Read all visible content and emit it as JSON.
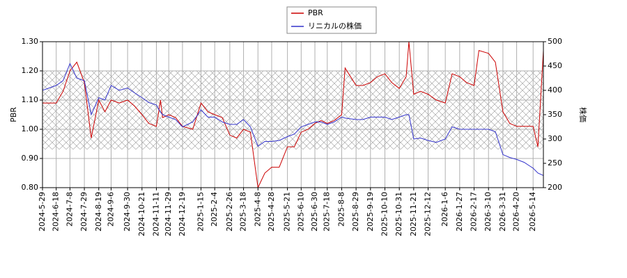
{
  "chart_data": {
    "type": "line",
    "x": [
      "2024-5-29",
      "2024-6-8",
      "2024-6-18",
      "2024-6-28",
      "2024-7-8",
      "2024-7-18",
      "2024-7-29",
      "2024-8-8",
      "2024-8-19",
      "2024-8-28",
      "2024-9-6",
      "2024-9-18",
      "2024-9-30",
      "2024-10-10",
      "2024-10-21",
      "2024-10-31",
      "2024-11-11",
      "2024-11-17",
      "2024-11-20",
      "2024-11-29",
      "2024-12-9",
      "2024-12-19",
      "2025-1-3",
      "2025-1-15",
      "2025-1-25",
      "2025-2-4",
      "2025-2-15",
      "2025-2-26",
      "2025-3-8",
      "2025-3-18",
      "2025-3-28",
      "2025-4-8",
      "2025-4-18",
      "2025-4-28",
      "2025-5-9",
      "2025-5-21",
      "2025-5-31",
      "2025-6-10",
      "2025-6-20",
      "2025-6-30",
      "2025-7-9",
      "2025-7-18",
      "2025-7-28",
      "2025-8-8",
      "2025-8-13",
      "2025-8-29",
      "2025-9-8",
      "2025-9-19",
      "2025-9-29",
      "2025-10-10",
      "2025-10-20",
      "2025-10-31",
      "2025-11-10",
      "2025-11-14",
      "2025-11-21",
      "2025-12-1",
      "2025-12-12",
      "2025-12-24",
      "2026-1-6",
      "2026-1-16",
      "2026-1-27",
      "2026-2-6",
      "2026-2-17",
      "2026-2-24",
      "2026-3-10",
      "2026-3-20",
      "2026-3-31",
      "2026-4-10",
      "2026-4-20",
      "2026-5-1",
      "2026-5-14",
      "2026-5-21",
      "2026-5-29"
    ],
    "series": [
      {
        "name": "PBR",
        "color": "#cc0000",
        "axis": "y",
        "values": [
          1.09,
          1.09,
          1.09,
          1.13,
          1.2,
          1.23,
          1.16,
          0.97,
          1.1,
          1.06,
          1.1,
          1.09,
          1.1,
          1.08,
          1.05,
          1.02,
          1.01,
          1.1,
          1.04,
          1.05,
          1.04,
          1.01,
          1.0,
          1.09,
          1.06,
          1.05,
          1.04,
          0.98,
          0.97,
          1.0,
          0.99,
          0.8,
          0.85,
          0.87,
          0.87,
          0.94,
          0.94,
          0.99,
          1.0,
          1.02,
          1.03,
          1.02,
          1.03,
          1.05,
          1.21,
          1.15,
          1.15,
          1.16,
          1.18,
          1.19,
          1.16,
          1.14,
          1.18,
          1.3,
          1.12,
          1.13,
          1.12,
          1.1,
          1.09,
          1.19,
          1.18,
          1.16,
          1.15,
          1.27,
          1.26,
          1.23,
          1.06,
          1.02,
          1.01,
          1.01,
          1.01,
          0.94,
          1.27
        ]
      },
      {
        "name": "リニカルの株価",
        "color": "#3333cc",
        "axis": "y2",
        "values": [
          400,
          405,
          410,
          420,
          455,
          425,
          420,
          350,
          385,
          380,
          410,
          400,
          405,
          395,
          385,
          375,
          370,
          355,
          350,
          345,
          340,
          325,
          335,
          360,
          345,
          345,
          335,
          330,
          330,
          340,
          325,
          285,
          295,
          295,
          297,
          305,
          310,
          325,
          330,
          335,
          335,
          330,
          335,
          345,
          343,
          340,
          340,
          345,
          345,
          345,
          340,
          345,
          350,
          350,
          300,
          302,
          297,
          293,
          300,
          325,
          320,
          320,
          320,
          320,
          320,
          315,
          268,
          262,
          258,
          252,
          240,
          230,
          225
        ]
      }
    ],
    "xticks": [
      "2024-5-29",
      "2024-6-18",
      "2024-7-8",
      "2024-7-29",
      "2024-8-19",
      "2024-9-6",
      "2024-9-30",
      "2024-10-21",
      "2024-11-11",
      "2024-11-29",
      "2024-12-19",
      "2025-1-15",
      "2025-2-4",
      "2025-2-26",
      "2025-3-18",
      "2025-4-8",
      "2025-4-28",
      "2025-5-21",
      "2025-6-10",
      "2025-6-30",
      "2025-7-18",
      "2025-8-8",
      "2025-8-29",
      "2025-9-19",
      "2025-10-10",
      "2025-10-31",
      "2025-11-21",
      "2025-12-12",
      "2026-1-6",
      "2026-1-27",
      "2026-2-17",
      "2026-3-10",
      "2026-3-31",
      "2026-4-20",
      "2026-5-14"
    ],
    "ylabel": "PBR",
    "y2label": "株価",
    "ylim": [
      0.8,
      1.3
    ],
    "yticks": [
      {
        "value": 0.8,
        "label": "0.80"
      },
      {
        "value": 0.9,
        "label": "0.90"
      },
      {
        "value": 1.0,
        "label": "1.00"
      },
      {
        "value": 1.1,
        "label": "1.10"
      },
      {
        "value": 1.2,
        "label": "1.20"
      },
      {
        "value": 1.3,
        "label": "1.30"
      }
    ],
    "y2lim": [
      200,
      500
    ],
    "y2ticks": [
      200,
      250,
      300,
      350,
      400,
      450,
      500
    ],
    "grid": true,
    "legend": "top"
  }
}
